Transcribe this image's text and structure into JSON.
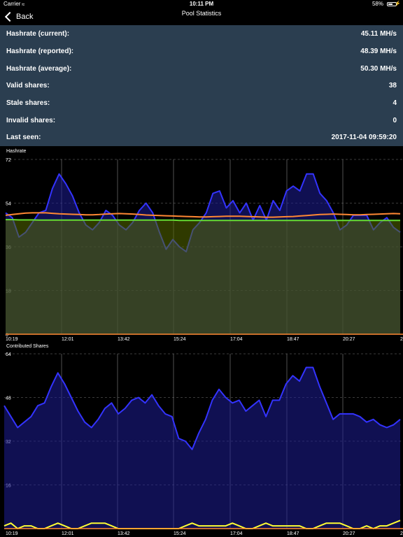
{
  "status_bar": {
    "carrier": "Carrier",
    "time": "10:11 PM",
    "battery": "58%",
    "battery_level": 0.58
  },
  "nav": {
    "back_label": "Back",
    "title": "Pool Statistics"
  },
  "stats": [
    {
      "label": "Hashrate (current):",
      "value": "45.11 MH/s"
    },
    {
      "label": "Hashrate (reported):",
      "value": "48.39 MH/s"
    },
    {
      "label": "Hashrate (average):",
      "value": "50.30 MH/s"
    },
    {
      "label": "Valid shares:",
      "value": "38"
    },
    {
      "label": "Stale shares:",
      "value": "4"
    },
    {
      "label": "Invalid shares:",
      "value": "0"
    },
    {
      "label": "Last seen:",
      "value": "2017-11-04 09:59:20"
    }
  ],
  "colors": {
    "current": "#3333ff",
    "reported": "#ff8833",
    "average": "#66dd33",
    "shares": "#ffff33"
  },
  "chart_data": [
    {
      "type": "area",
      "title": "Hashrate",
      "ylim": [
        0,
        72
      ],
      "y_ticks": [
        "0",
        "18",
        "36",
        "54",
        "72"
      ],
      "x_ticks": [
        "10:19",
        "12:01",
        "13:42",
        "15:24",
        "17:04",
        "18:47",
        "20:27",
        "2"
      ],
      "series": [
        {
          "role": "current",
          "values": [
            50,
            48,
            40,
            42,
            46,
            50,
            51,
            60,
            66,
            62,
            57,
            50,
            45,
            43,
            46,
            51,
            49,
            45,
            43,
            46,
            51,
            54,
            50,
            42,
            35,
            39,
            36,
            34,
            43,
            46,
            50,
            58,
            59,
            52,
            55,
            50,
            54,
            47,
            53,
            47,
            55,
            51,
            59,
            61,
            59,
            66,
            66,
            58,
            55,
            50,
            43,
            45,
            49,
            49,
            49,
            43,
            46,
            48,
            44,
            42
          ]
        },
        {
          "role": "reported",
          "values": [
            49,
            49.3,
            49.6,
            49.9,
            50,
            50,
            50,
            49.8,
            49.6,
            49.5,
            49.4,
            49.3,
            49.2,
            49.2,
            49.3,
            49.5,
            49.6,
            49.7,
            49.6,
            49.5,
            49.3,
            49.1,
            49,
            48.9,
            48.8,
            48.7,
            48.6,
            48.5,
            48.4,
            48.3,
            48.3,
            48.4,
            48.5,
            48.6,
            48.6,
            48.6,
            48.5,
            48.4,
            48.3,
            48.2,
            48.2,
            48.3,
            48.4,
            48.5,
            48.7,
            48.9,
            49.1,
            49.3,
            49.4,
            49.5,
            49.4,
            49.3,
            49.2,
            49.2,
            49.3,
            49.4,
            49.5,
            49.6,
            49.7,
            49.6
          ]
        },
        {
          "role": "average",
          "values": [
            47.2,
            47.2,
            47.1,
            47.1,
            47.1,
            47,
            47,
            47,
            47,
            47,
            47,
            47,
            47,
            47,
            47,
            47,
            47,
            47,
            47,
            47,
            47,
            47,
            47,
            47,
            47,
            47,
            46.9,
            46.9,
            46.9,
            46.9,
            46.9,
            46.9,
            46.9,
            46.9,
            46.9,
            46.9,
            46.9,
            46.9,
            46.9,
            46.9,
            46.9,
            46.9,
            46.9,
            46.9,
            46.9,
            46.9,
            46.9,
            46.9,
            46.9,
            46.9,
            46.9,
            46.9,
            46.9,
            46.9,
            46.9,
            46.9,
            46.9,
            46.9,
            46.9,
            46.9
          ]
        }
      ]
    },
    {
      "type": "area",
      "title": "Contributed Shares",
      "ylim": [
        0,
        64
      ],
      "y_ticks": [
        "16",
        "32",
        "48",
        "64"
      ],
      "x_ticks": [
        "10:19",
        "12:01",
        "13:42",
        "15:24",
        "17:04",
        "18:47",
        "20:27",
        "2"
      ],
      "series": [
        {
          "role": "current",
          "values": [
            45,
            41,
            37,
            39,
            41,
            45,
            46,
            52,
            57,
            53,
            48,
            43,
            39,
            37,
            40,
            44,
            46,
            42,
            44,
            47,
            48,
            46,
            49,
            45,
            42,
            41,
            33,
            32,
            29,
            35,
            40,
            47,
            51,
            48,
            46,
            47,
            43,
            45,
            47,
            41,
            47,
            47,
            53,
            56,
            54,
            59,
            59,
            52,
            46,
            40,
            42,
            42,
            42,
            41,
            39,
            40,
            38,
            37,
            38,
            40
          ]
        },
        {
          "role": "shares",
          "values": [
            1,
            2,
            0,
            1,
            1,
            0,
            0,
            1,
            2,
            1,
            0,
            0,
            1,
            2,
            2,
            2,
            1,
            0,
            0,
            0,
            0,
            0,
            0,
            0,
            0,
            0,
            0,
            1,
            2,
            1,
            1,
            1,
            1,
            1,
            2,
            1,
            0,
            0,
            1,
            2,
            1,
            1,
            1,
            1,
            1,
            0,
            0,
            1,
            2,
            2,
            2,
            1,
            0,
            0,
            1,
            0,
            1,
            1,
            2,
            3
          ]
        }
      ]
    }
  ]
}
